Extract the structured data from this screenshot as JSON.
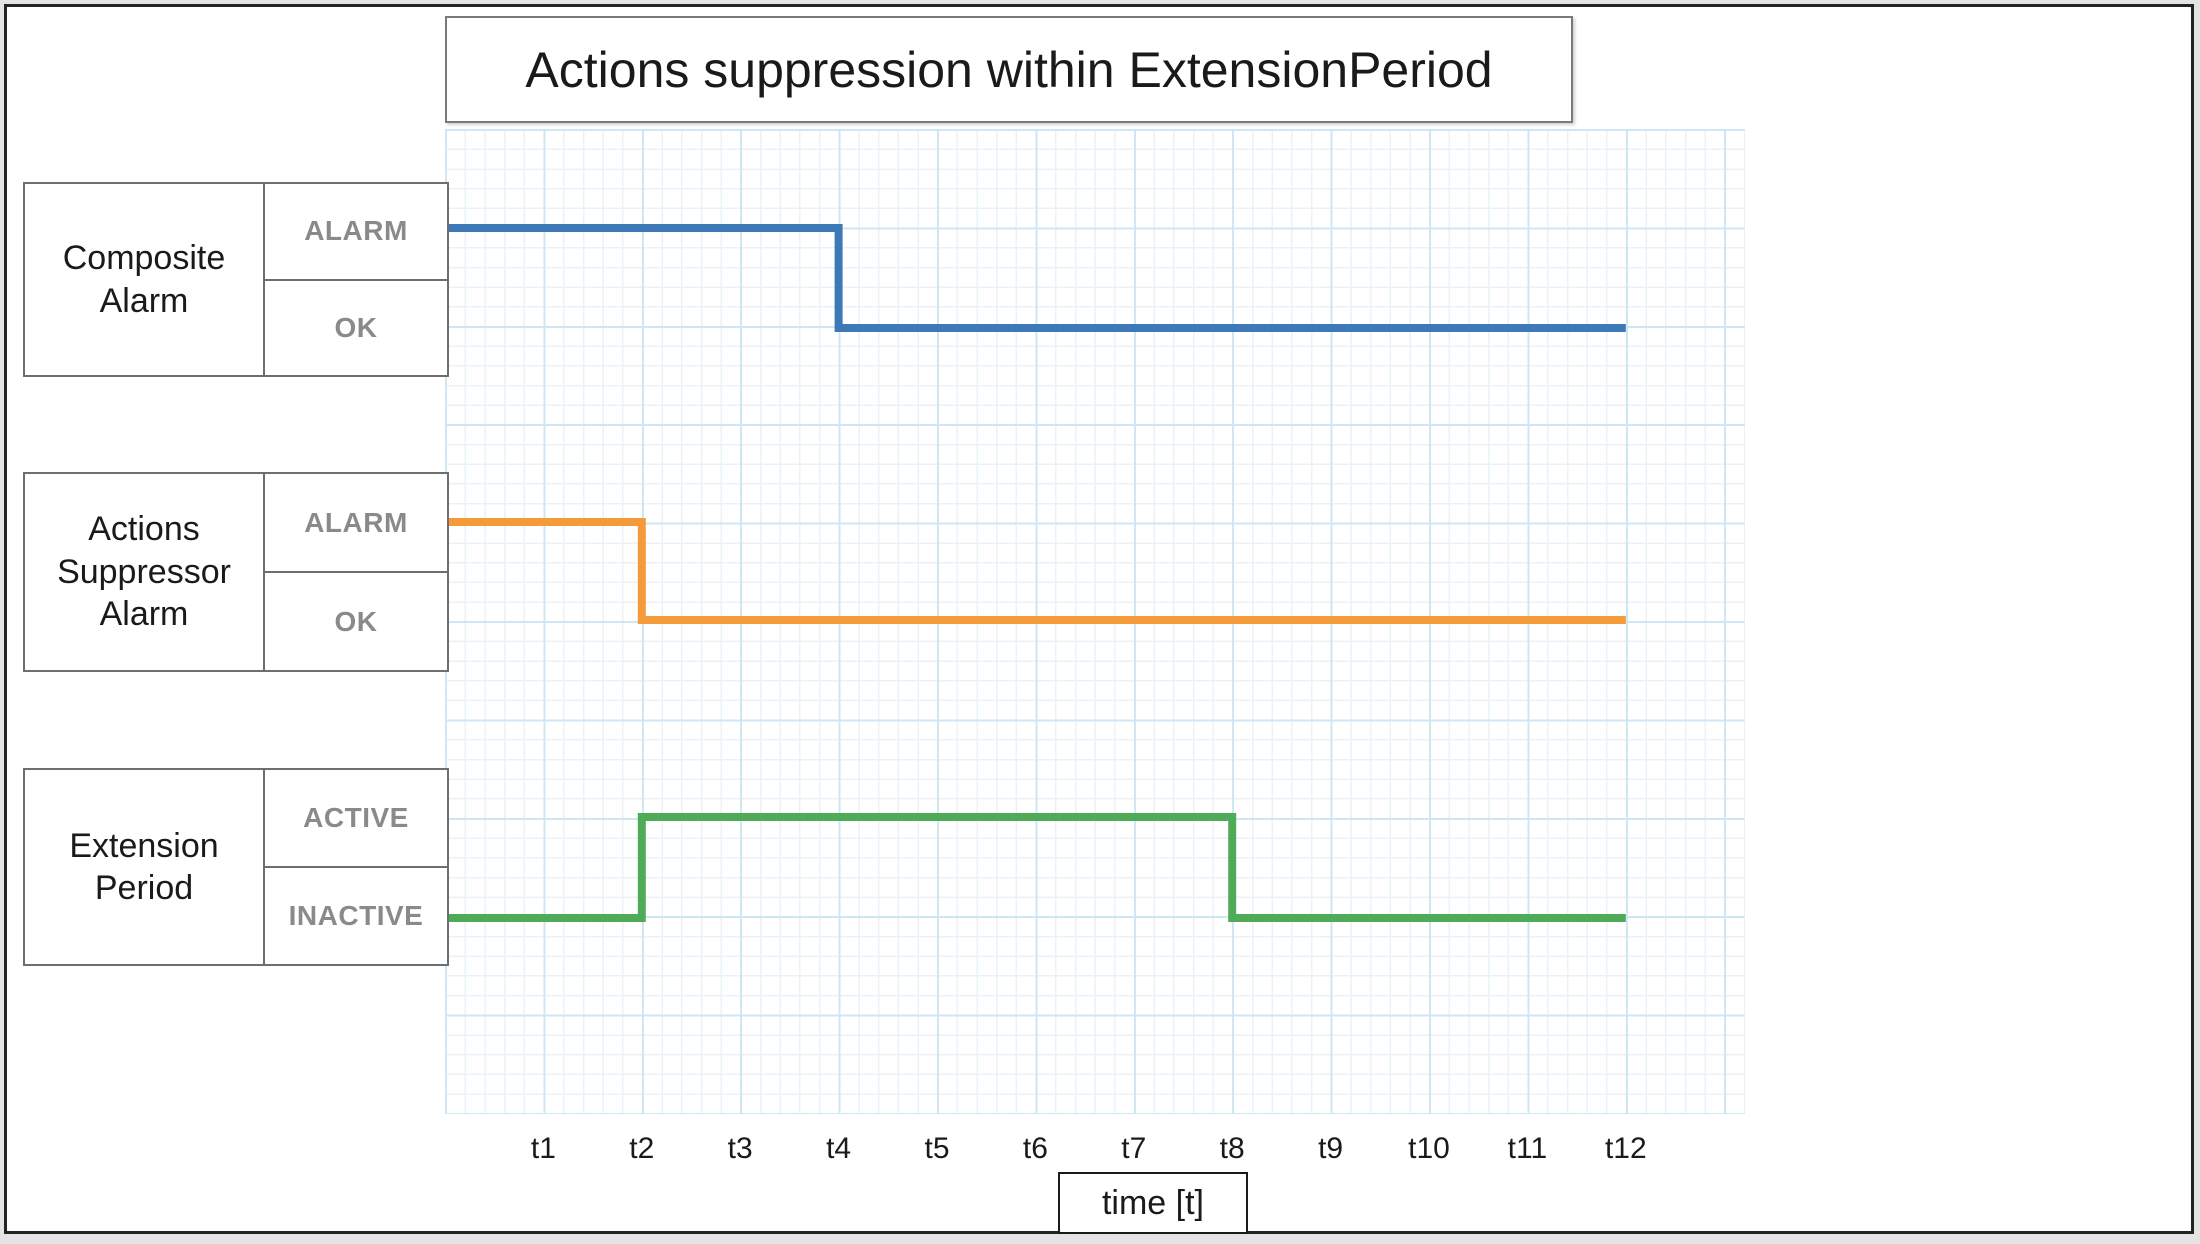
{
  "title": "Actions suppression within ExtensionPeriod",
  "axis": {
    "label": "time [t]",
    "ticks": [
      "t1",
      "t2",
      "t3",
      "t4",
      "t5",
      "t6",
      "t7",
      "t8",
      "t9",
      "t10",
      "t11",
      "t12"
    ]
  },
  "rows": [
    {
      "name": "Composite Alarm",
      "states": [
        "ALARM",
        "OK"
      ]
    },
    {
      "name": "Actions Suppressor Alarm",
      "states": [
        "ALARM",
        "OK"
      ]
    },
    {
      "name": "Extension Period",
      "states": [
        "ACTIVE",
        "INACTIVE"
      ]
    }
  ],
  "colors": {
    "composite_line": "#3c79b6",
    "suppressor_line": "#f49a3b",
    "extension_line": "#4fab57",
    "grid_minor": "#e7f3f9",
    "grid_major": "#cfe7f2",
    "state_label": "#8a8a8a",
    "box_border": "#6e6e6e",
    "text": "#1a1a1a"
  },
  "chart_data": {
    "type": "line",
    "subtype": "digital-timing-step",
    "title": "Actions suppression within ExtensionPeriod",
    "xlabel": "time [t]",
    "ylabel": "",
    "x_ticks": [
      "t1",
      "t2",
      "t3",
      "t4",
      "t5",
      "t6",
      "t7",
      "t8",
      "t9",
      "t10",
      "t11",
      "t12"
    ],
    "x_range": [
      0,
      12
    ],
    "grid": true,
    "legend_position": "left-row-labels",
    "series": [
      {
        "name": "Composite Alarm",
        "color": "#3c79b6",
        "levels": [
          "ALARM",
          "OK"
        ],
        "transitions": [
          {
            "t": 0,
            "state": "ALARM"
          },
          {
            "t": 4,
            "state": "OK"
          }
        ],
        "end_t": 12
      },
      {
        "name": "Actions Suppressor Alarm",
        "color": "#f49a3b",
        "levels": [
          "ALARM",
          "OK"
        ],
        "transitions": [
          {
            "t": 0,
            "state": "ALARM"
          },
          {
            "t": 2,
            "state": "OK"
          }
        ],
        "end_t": 12
      },
      {
        "name": "Extension Period",
        "color": "#4fab57",
        "levels": [
          "ACTIVE",
          "INACTIVE"
        ],
        "transitions": [
          {
            "t": 0,
            "state": "INACTIVE"
          },
          {
            "t": 2,
            "state": "ACTIVE"
          },
          {
            "t": 8,
            "state": "INACTIVE"
          }
        ],
        "end_t": 12
      }
    ]
  }
}
